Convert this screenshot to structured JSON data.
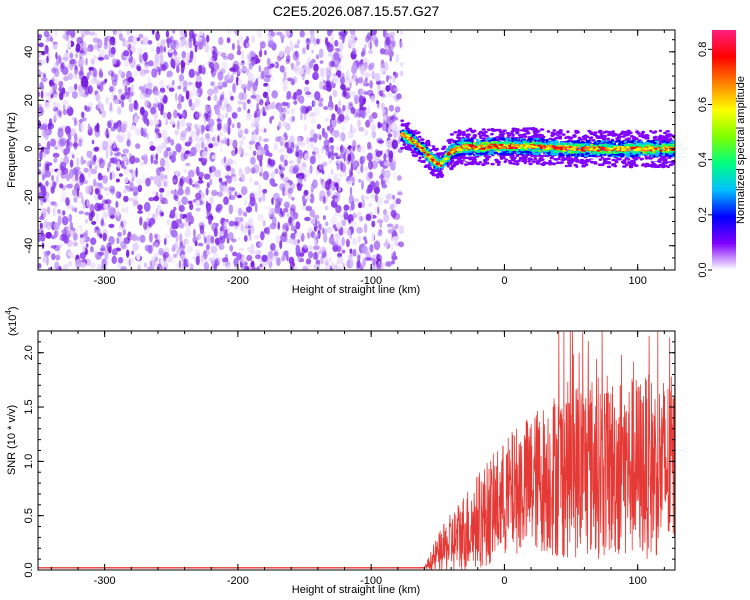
{
  "chart_data": [
    {
      "type": "heatmap",
      "title": "C2E5.2026.087.15.57.G27",
      "xlabel": "Height of straight line (km)",
      "ylabel": "Frequency (Hz)",
      "xlim": [
        -350,
        128
      ],
      "ylim": [
        -50,
        49
      ],
      "xticks": [
        "-300",
        "-200",
        "-100",
        "0",
        "100"
      ],
      "xtick_values": [
        -300,
        -200,
        -100,
        0,
        100
      ],
      "yticks": [
        "-40",
        "-20",
        "0",
        "20",
        "40"
      ],
      "ytick_values": [
        -40,
        -20,
        0,
        20,
        40
      ],
      "colorbar": {
        "label": "Normalized spectral amplitude",
        "range": [
          0.0,
          0.87
        ],
        "ticks": [
          "0.0",
          "0.2",
          "0.4",
          "0.6",
          "0.8"
        ],
        "tick_values": [
          0.0,
          0.2,
          0.4,
          0.6,
          0.8
        ],
        "colormap": [
          "#ffffff",
          "#8000ff",
          "#0000ff",
          "#00c0ff",
          "#00ff80",
          "#80ff00",
          "#ffff00",
          "#ff8000",
          "#ff0000",
          "#ff2080"
        ]
      },
      "noise_region_x": [
        -350,
        -77
      ],
      "signal_track": {
        "x": [
          -77,
          -70,
          -62,
          -55,
          -48,
          -40,
          -30,
          -20,
          -10,
          0,
          20,
          40,
          60,
          80,
          100,
          128
        ],
        "freq": [
          6,
          4,
          0,
          -4,
          -7,
          -1,
          1,
          0.5,
          1,
          1,
          1,
          0.5,
          0,
          0,
          0,
          0
        ]
      }
    },
    {
      "type": "line",
      "xlabel": "Height of straight line (km)",
      "ylabel": "SNR (10 * v/v)",
      "y_multiplier": "(x10",
      "y_multiplier_exp": "4",
      "y_multiplier_close": ")",
      "xlim": [
        -350,
        128
      ],
      "ylim": [
        0,
        2.2
      ],
      "xticks": [
        "-300",
        "-200",
        "-100",
        "0",
        "100"
      ],
      "xtick_values": [
        -300,
        -200,
        -100,
        0,
        100
      ],
      "yticks": [
        "0.0",
        "0.5",
        "1.0",
        "1.5",
        "2.0"
      ],
      "ytick_values": [
        0.0,
        0.5,
        1.0,
        1.5,
        2.0
      ],
      "color": "#e53935",
      "baseline_level": 0.02,
      "envelope": {
        "x": [
          -350,
          -60,
          -55,
          -50,
          -40,
          -30,
          -20,
          -10,
          0,
          10,
          20,
          30,
          40,
          60,
          80,
          100,
          128
        ],
        "mean": [
          0.02,
          0.02,
          0.08,
          0.15,
          0.25,
          0.35,
          0.45,
          0.55,
          0.65,
          0.75,
          0.8,
          0.85,
          0.9,
          0.95,
          0.95,
          0.95,
          0.95
        ],
        "amp": [
          0.005,
          0.005,
          0.1,
          0.18,
          0.28,
          0.38,
          0.45,
          0.5,
          0.55,
          0.6,
          0.65,
          0.7,
          0.8,
          0.85,
          0.85,
          0.85,
          0.85
        ]
      },
      "peak_value": 2.2
    }
  ]
}
